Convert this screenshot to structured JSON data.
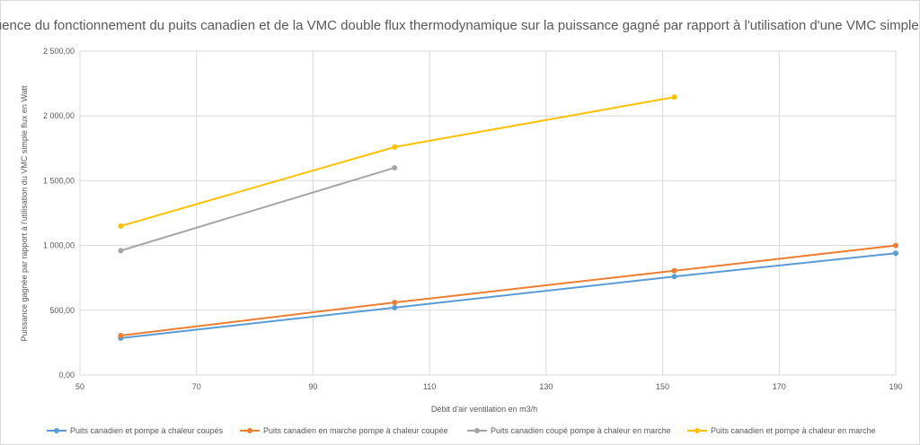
{
  "chart_data": {
    "type": "scatter",
    "title": "Influence du fonctionnement du puits canadien et de la VMC double flux thermodynamique sur la puissance gagné par rapport à l'utilisation d'une VMC simple flux",
    "xlabel": "Débit d'air ventilation en m3/h",
    "ylabel": "Puissance gagnée par rapport à l'utilisation du VMC simple flux en Watt",
    "xlim": [
      50,
      190
    ],
    "ylim": [
      0,
      2500
    ],
    "x_ticks": [
      50,
      70,
      90,
      110,
      130,
      150,
      170,
      190
    ],
    "y_ticks": [
      0,
      500,
      1000,
      1500,
      2000,
      2500
    ],
    "y_tick_labels": [
      "0,00",
      "500,00",
      "1 000,00",
      "1 500,00",
      "2 000,00",
      "2 500,00"
    ],
    "grid": true,
    "legend_position": "bottom",
    "series": [
      {
        "name": "Puits canadien et pompe à chaleur coupés",
        "color": "#5B9BD5",
        "points": [
          [
            57,
            285
          ],
          [
            104,
            520
          ],
          [
            152,
            760
          ],
          [
            190,
            940
          ]
        ]
      },
      {
        "name": "Puits canadien en marche pompe à chaleur coupée",
        "color": "#ED7D31",
        "points": [
          [
            57,
            305
          ],
          [
            104,
            560
          ],
          [
            152,
            805
          ],
          [
            190,
            1000
          ]
        ]
      },
      {
        "name": "Puits canadien coupé pompe à chaleur en marche",
        "color": "#A5A5A5",
        "points": [
          [
            57,
            960
          ],
          [
            104,
            1600
          ]
        ]
      },
      {
        "name": "Puits canadien et pompe à chaleur en marche",
        "color": "#FFC000",
        "points": [
          [
            57,
            1150
          ],
          [
            104,
            1760
          ],
          [
            152,
            2145
          ]
        ]
      }
    ]
  }
}
